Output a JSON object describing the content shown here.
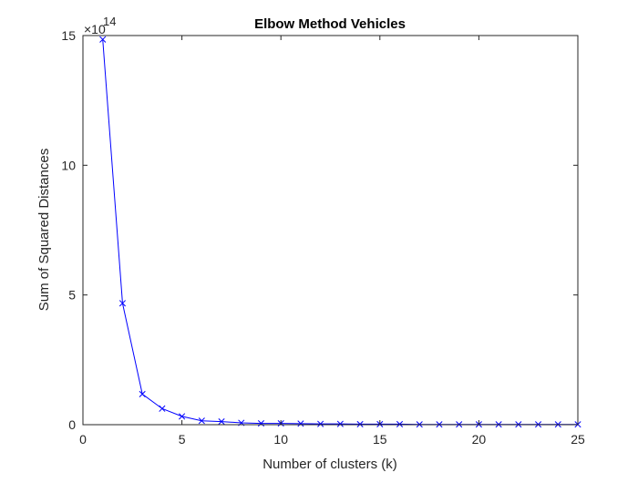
{
  "chart_data": {
    "type": "line",
    "title": "Elbow Method Vehicles",
    "xlabel": "Number of clusters (k)",
    "ylabel": "Sum of Squared Distances",
    "exponent_base": "×10",
    "exponent_power": "14",
    "xlim": [
      0,
      25
    ],
    "ylim": [
      0,
      15
    ],
    "xticks": [
      0,
      5,
      10,
      15,
      20,
      25
    ],
    "yticks": [
      0,
      5,
      10,
      15
    ],
    "grid": false,
    "legend": "none",
    "series": [
      {
        "marker": "x",
        "color": "#0000ff",
        "x": [
          1,
          2,
          3,
          4,
          5,
          6,
          7,
          8,
          9,
          10,
          11,
          12,
          13,
          14,
          15,
          16,
          17,
          18,
          19,
          20,
          21,
          22,
          23,
          24,
          25
        ],
        "y": [
          14.85,
          4.68,
          1.18,
          0.62,
          0.32,
          0.15,
          0.12,
          0.07,
          0.05,
          0.05,
          0.04,
          0.03,
          0.03,
          0.02,
          0.02,
          0.02,
          0.01,
          0.01,
          0.01,
          0.01,
          0.01,
          0.01,
          0.01,
          0.01,
          0.01
        ]
      }
    ]
  }
}
